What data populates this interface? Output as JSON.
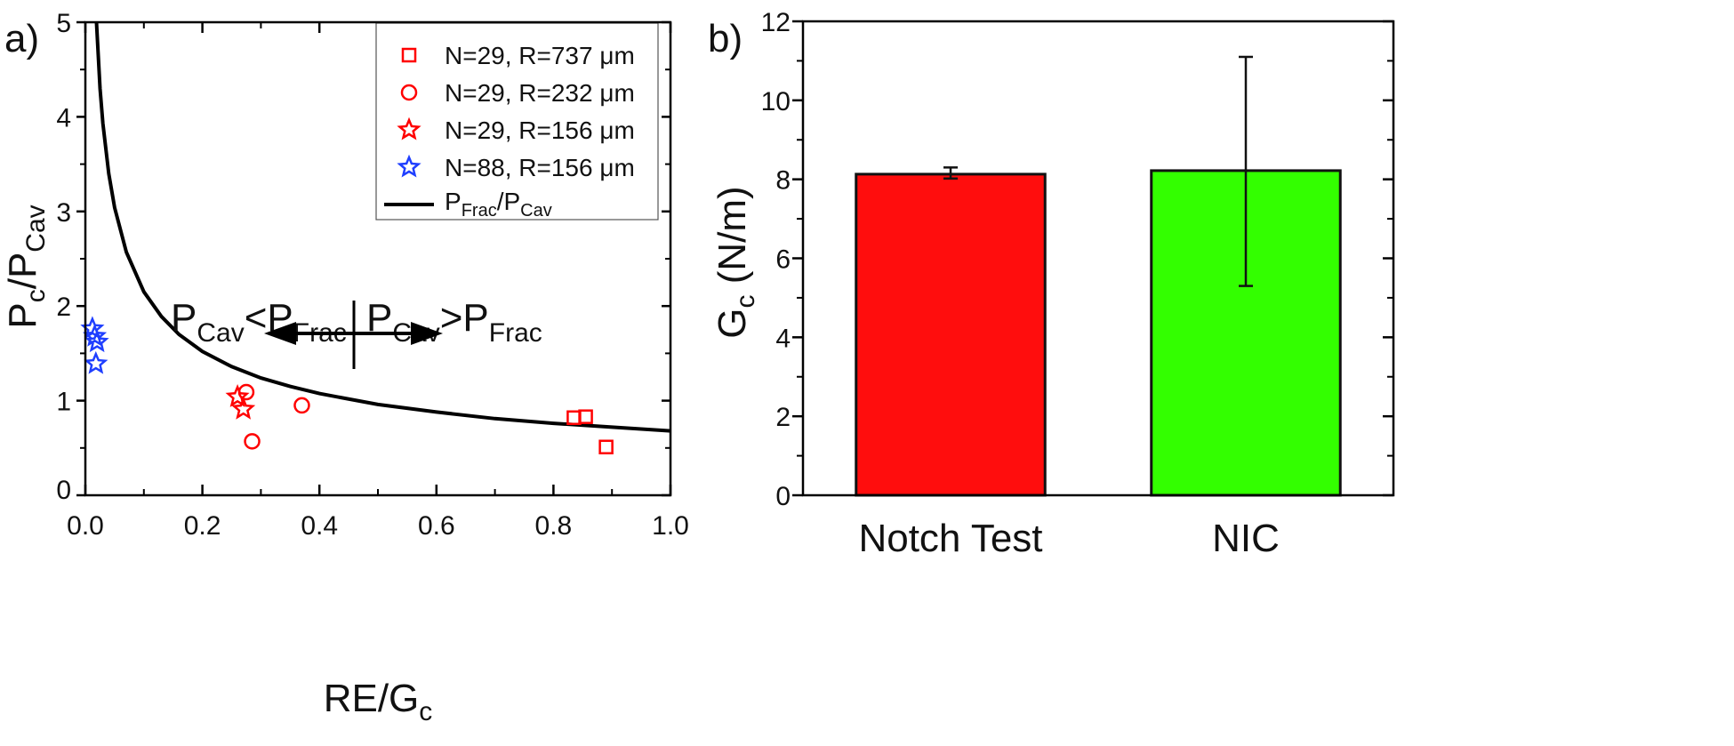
{
  "chart_data": [
    {
      "panel_label": "a)",
      "type": "scatter",
      "xlabel": {
        "main": "RE/G",
        "sub": "c"
      },
      "ylabel": {
        "p1": "P",
        "s1": "c",
        "mid": "/P",
        "s2": "Cav"
      },
      "xlim": [
        0,
        1.0
      ],
      "ylim": [
        0,
        5
      ],
      "xticks": [
        "0.0",
        "0.2",
        "0.4",
        "0.6",
        "0.8",
        "1.0"
      ],
      "yticks": [
        "0",
        "1",
        "2",
        "3",
        "4",
        "5"
      ],
      "grid": false,
      "legend_placement": "top-right",
      "series": [
        {
          "name": "N=29, R=737 μm",
          "marker": "square",
          "color": "#ff0000",
          "points": [
            [
              0.835,
              0.82
            ],
            [
              0.855,
              0.83
            ],
            [
              0.89,
              0.51
            ]
          ]
        },
        {
          "name": "N=29, R=232 μm",
          "marker": "circle",
          "color": "#ff0000",
          "points": [
            [
              0.275,
              1.09
            ],
            [
              0.37,
              0.95
            ],
            [
              0.285,
              0.57
            ]
          ]
        },
        {
          "name": "N=29, R=156 μm",
          "marker": "star",
          "color": "#ff0000",
          "points": [
            [
              0.26,
              1.04
            ],
            [
              0.27,
              0.91
            ]
          ]
        },
        {
          "name": "N=88, R=156 μm",
          "marker": "star",
          "color": "#1f3fff",
          "points": [
            [
              0.012,
              1.76
            ],
            [
              0.016,
              1.68
            ],
            [
              0.02,
              1.62
            ],
            [
              0.018,
              1.39
            ]
          ]
        }
      ],
      "curve": {
        "name": {
          "p1": "P",
          "s1": "Frac",
          "mid": "/P",
          "s2": "Cav"
        },
        "color": "#000000",
        "points": [
          [
            0.019,
            5.0
          ],
          [
            0.025,
            4.3
          ],
          [
            0.03,
            3.93
          ],
          [
            0.04,
            3.4
          ],
          [
            0.05,
            3.04
          ],
          [
            0.07,
            2.57
          ],
          [
            0.1,
            2.15
          ],
          [
            0.13,
            1.89
          ],
          [
            0.16,
            1.7
          ],
          [
            0.2,
            1.52
          ],
          [
            0.25,
            1.36
          ],
          [
            0.3,
            1.24
          ],
          [
            0.35,
            1.15
          ],
          [
            0.4,
            1.075
          ],
          [
            0.5,
            0.96
          ],
          [
            0.6,
            0.88
          ],
          [
            0.7,
            0.81
          ],
          [
            0.8,
            0.76
          ],
          [
            0.9,
            0.72
          ],
          [
            1.0,
            0.68
          ]
        ]
      },
      "annotation": {
        "left": {
          "p1": "P",
          "s1": "Cav",
          "mid": "<P",
          "s2": "Frac"
        },
        "right": {
          "p1": "P",
          "s1": "Cav",
          "mid": ">P",
          "s2": "Frac"
        }
      }
    },
    {
      "panel_label": "b)",
      "type": "bar",
      "categories": [
        "Notch Test",
        "NIC"
      ],
      "values": [
        8.13,
        8.22
      ],
      "error_low": [
        8.02,
        5.3
      ],
      "error_high": [
        8.3,
        11.1
      ],
      "colors": [
        "#ff0d0d",
        "#33ff00"
      ],
      "ylabel": {
        "p1": "G",
        "s1": "c",
        "rest": " (N/m)"
      },
      "ylim": [
        0,
        12
      ],
      "yticks": [
        "0",
        "2",
        "4",
        "6",
        "8",
        "10",
        "12"
      ],
      "grid": false
    }
  ]
}
